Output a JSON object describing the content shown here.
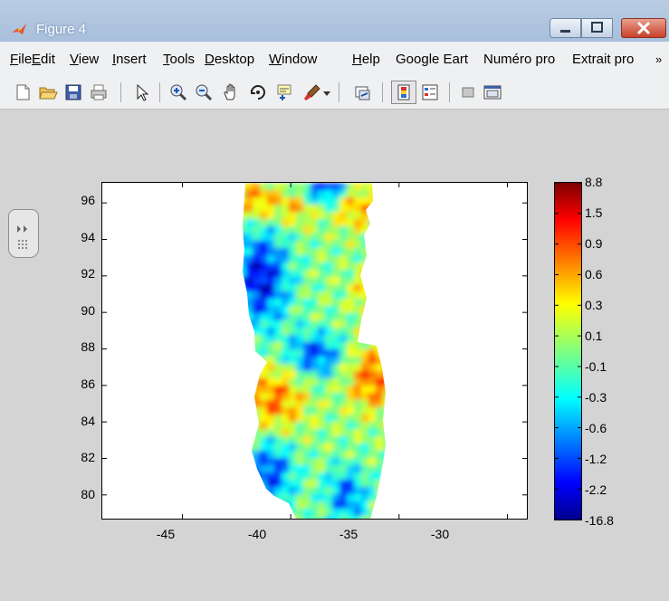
{
  "window": {
    "title": "Figure 4"
  },
  "menu": {
    "items": [
      {
        "accel": "F",
        "rest": "ile"
      },
      {
        "accel": "E",
        "rest": "dit"
      },
      {
        "accel": "V",
        "rest": "iew"
      },
      {
        "accel": "I",
        "rest": "nsert"
      },
      {
        "accel": "T",
        "rest": "ools"
      },
      {
        "accel": "D",
        "rest": "esktop"
      },
      {
        "accel": "W",
        "rest": "indow"
      },
      {
        "accel": "H",
        "rest": "elp"
      },
      {
        "accel": "",
        "rest": "Google Eart"
      },
      {
        "accel": "",
        "rest": "Numéro pro"
      },
      {
        "accel": "",
        "rest": "Extrait pro"
      }
    ],
    "overflow": "»"
  },
  "toolbar": {
    "icons": [
      "new-figure-icon",
      "open-file-icon",
      "save-figure-icon",
      "print-figure-icon",
      "edit-plot-icon",
      "zoom-in-icon",
      "zoom-out-icon",
      "pan-icon",
      "rotate-3d-icon",
      "data-cursor-icon",
      "brush-icon",
      "brush-dropdown-icon",
      "link-plot-icon",
      "insert-colorbar-icon",
      "insert-legend-icon",
      "hide-plot-tools-icon",
      "show-plot-tools-icon"
    ]
  },
  "chart_data": {
    "type": "heatmap",
    "title": "",
    "xlabel": "",
    "ylabel": "",
    "xlim": [
      -48.7,
      -29.1
    ],
    "ylim": [
      78.7,
      97.1
    ],
    "xticks": [
      "-45",
      "-40",
      "-35",
      "-30"
    ],
    "yticks": [
      "96",
      "94",
      "92",
      "90",
      "88",
      "86",
      "84",
      "82",
      "80"
    ],
    "colormap": "jet",
    "colorbar_labels": [
      "8.8",
      "1.5",
      "0.9",
      "0.6",
      "0.3",
      "0.1",
      "-0.1",
      "-0.3",
      "-0.6",
      "-1.2",
      "-2.2",
      "-16.8"
    ],
    "data_extent_x": [
      -41,
      -33
    ]
  }
}
